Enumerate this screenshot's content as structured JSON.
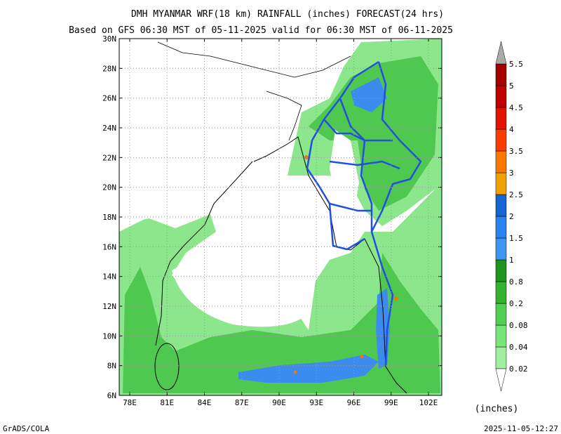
{
  "title": "DMH MYANMAR WRF(18 km) RAINFALL (inches) FORECAST(24 hrs)",
  "subtitle": "Based on GFS 06:30 MST of 05-11-2025 valid for 06:30 MST of 06-11-2025",
  "lat_labels": [
    "30N",
    "28N",
    "26N",
    "24N",
    "22N",
    "20N",
    "18N",
    "16N",
    "14N",
    "12N",
    "10N",
    "8N",
    "6N"
  ],
  "lon_labels": [
    "78E",
    "81E",
    "84E",
    "87E",
    "90E",
    "93E",
    "96E",
    "99E",
    "102E"
  ],
  "colorbar": {
    "levels": [
      0.02,
      0.04,
      0.08,
      0.2,
      0.8,
      1,
      1.5,
      2,
      2.5,
      3,
      3.5,
      4,
      4.5,
      5,
      5.5
    ],
    "unit": "(inches)"
  },
  "footer": {
    "left": "GrADS/COLA",
    "right": "2025-11-05-12:27"
  }
}
